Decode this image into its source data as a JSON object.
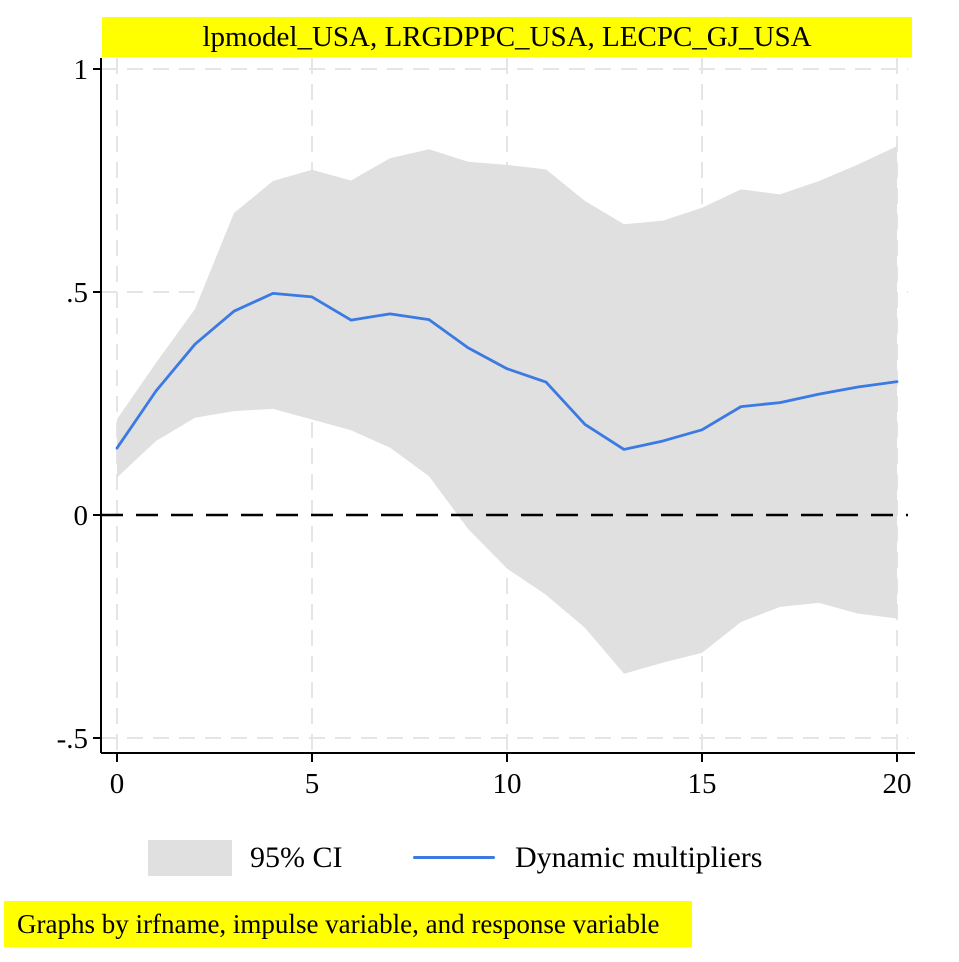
{
  "chart": {
    "title": "lpmodel_USA, LRGDPPC_USA, LECPC_GJ_USA",
    "footer_note": "Graphs by irfname, impulse variable, and response variable",
    "legend": [
      {
        "swatch": "area",
        "label": "95% CI"
      },
      {
        "swatch": "line",
        "label": "Dynamic multipliers"
      }
    ],
    "colors": {
      "highlight_bar": "#ffff00",
      "ci_band": "#e0e0e0",
      "multiplier_line": "#3a7ae2",
      "gridline": "#e5e5e5",
      "zero_line": "#000000",
      "axis": "#000000"
    }
  },
  "chart_data": {
    "type": "area+line",
    "title": "lpmodel_USA, LRGDPPC_USA, LECPC_GJ_USA",
    "xlabel": "",
    "ylabel": "",
    "xlim": [
      0,
      20
    ],
    "ylim": [
      -0.53,
      1.03
    ],
    "grid": "dashed",
    "legend_position": "bottom",
    "x_ticks": [
      0,
      5,
      10,
      15,
      20
    ],
    "x_tick_labels": [
      "0",
      "5",
      "10",
      "15",
      "20"
    ],
    "y_ticks": [
      1,
      0.5,
      0,
      -0.5
    ],
    "y_tick_labels": [
      "1",
      ".5",
      "0",
      "-.5"
    ],
    "zero_line": "black-dashed",
    "x": [
      0,
      1,
      2,
      3,
      4,
      5,
      6,
      7,
      8,
      9,
      10,
      11,
      12,
      13,
      14,
      15,
      16,
      17,
      18,
      19,
      20
    ],
    "series": [
      {
        "name": "Dynamic multipliers",
        "style": "line",
        "color": "#3a7ae2",
        "values": [
          0.15,
          0.278,
          0.383,
          0.457,
          0.497,
          0.489,
          0.437,
          0.451,
          0.438,
          0.375,
          0.328,
          0.298,
          0.203,
          0.147,
          0.166,
          0.191,
          0.243,
          0.252,
          0.271,
          0.287,
          0.299
        ]
      },
      {
        "name": "95% CI upper",
        "style": "band-upper",
        "color": "#e0e0e0",
        "values": [
          0.215,
          0.341,
          0.462,
          0.677,
          0.749,
          0.774,
          0.75,
          0.8,
          0.82,
          0.792,
          0.785,
          0.775,
          0.704,
          0.652,
          0.66,
          0.689,
          0.73,
          0.719,
          0.749,
          0.786,
          0.827
        ]
      },
      {
        "name": "95% CI lower",
        "style": "band-lower",
        "color": "#e0e0e0",
        "values": [
          0.084,
          0.166,
          0.218,
          0.233,
          0.238,
          0.214,
          0.19,
          0.151,
          0.087,
          -0.031,
          -0.12,
          -0.179,
          -0.253,
          -0.356,
          -0.331,
          -0.309,
          -0.24,
          -0.206,
          -0.197,
          -0.221,
          -0.232
        ]
      }
    ]
  }
}
